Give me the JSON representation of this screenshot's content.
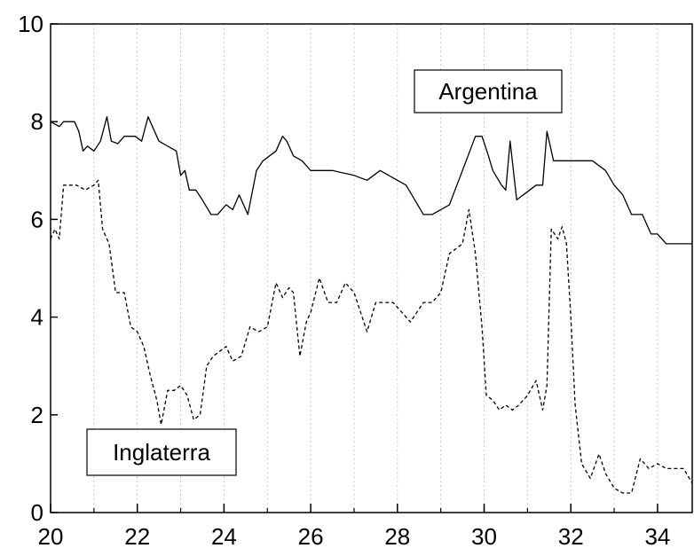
{
  "chart_data": {
    "type": "line",
    "title": "",
    "xlabel": "",
    "ylabel": "",
    "xlim": [
      20,
      34.8
    ],
    "ylim": [
      0,
      10
    ],
    "x_ticks": [
      "20",
      "22",
      "24",
      "26",
      "28",
      "30",
      "32",
      "34"
    ],
    "y_ticks": [
      "0",
      "2",
      "4",
      "6",
      "8",
      "10"
    ],
    "grid": "vertical dotted",
    "series": [
      {
        "name": "Argentina",
        "style": "solid",
        "color": "#000000",
        "x": [
          20,
          20.2,
          20.3,
          20.55,
          20.65,
          20.75,
          20.85,
          21.0,
          21.15,
          21.3,
          21.4,
          21.55,
          21.7,
          21.8,
          21.95,
          22.1,
          22.25,
          22.4,
          22.5,
          22.7,
          22.9,
          23.0,
          23.1,
          23.2,
          23.35,
          23.5,
          23.7,
          23.85,
          24.05,
          24.2,
          24.35,
          24.55,
          24.75,
          24.9,
          25.05,
          25.2,
          25.35,
          25.45,
          25.6,
          25.8,
          26.0,
          26.5,
          27.0,
          27.3,
          27.6,
          28.0,
          28.2,
          28.4,
          28.6,
          28.8,
          29.0,
          29.2,
          29.5,
          29.8,
          29.95,
          30.1,
          30.2,
          30.4,
          30.5,
          30.6,
          30.75,
          30.9,
          31.05,
          31.2,
          31.35,
          31.45,
          31.6,
          32.0,
          32.5,
          32.8,
          33.0,
          33.2,
          33.4,
          33.65,
          33.85,
          34.0,
          34.2,
          34.5,
          34.8
        ],
        "y": [
          8.0,
          7.9,
          8.0,
          8.0,
          7.8,
          7.4,
          7.5,
          7.4,
          7.6,
          8.1,
          7.6,
          7.55,
          7.7,
          7.7,
          7.7,
          7.6,
          8.1,
          7.8,
          7.6,
          7.5,
          7.4,
          6.9,
          7.0,
          6.6,
          6.6,
          6.4,
          6.1,
          6.1,
          6.3,
          6.2,
          6.5,
          6.1,
          7.0,
          7.2,
          7.3,
          7.4,
          7.7,
          7.6,
          7.3,
          7.2,
          7.0,
          7.0,
          6.9,
          6.8,
          7.0,
          6.8,
          6.7,
          6.4,
          6.1,
          6.1,
          6.2,
          6.3,
          7.0,
          7.7,
          7.7,
          7.3,
          7.0,
          6.7,
          6.6,
          7.6,
          6.4,
          6.5,
          6.6,
          6.7,
          6.7,
          7.8,
          7.2,
          7.2,
          7.2,
          7.0,
          6.7,
          6.5,
          6.1,
          6.1,
          5.7,
          5.7,
          5.5,
          5.5,
          5.5
        ],
        "label": "Argentina"
      },
      {
        "name": "Inglaterra",
        "style": "dashed",
        "color": "#000000",
        "x": [
          20,
          20.1,
          20.2,
          20.3,
          20.45,
          20.6,
          20.8,
          21.0,
          21.1,
          21.2,
          21.35,
          21.5,
          21.7,
          21.85,
          22.0,
          22.15,
          22.3,
          22.45,
          22.55,
          22.7,
          22.85,
          23.0,
          23.15,
          23.3,
          23.45,
          23.6,
          23.75,
          23.9,
          24.05,
          24.2,
          24.4,
          24.6,
          24.8,
          25.0,
          25.2,
          25.35,
          25.5,
          25.6,
          25.75,
          25.9,
          26.0,
          26.2,
          26.4,
          26.6,
          26.8,
          27.0,
          27.15,
          27.3,
          27.5,
          27.7,
          27.9,
          28.1,
          28.3,
          28.45,
          28.6,
          28.8,
          29.0,
          29.2,
          29.35,
          29.5,
          29.65,
          29.8,
          29.95,
          30.05,
          30.2,
          30.35,
          30.5,
          30.65,
          30.8,
          31.0,
          31.2,
          31.35,
          31.45,
          31.55,
          31.7,
          31.8,
          31.9,
          32.0,
          32.1,
          32.25,
          32.45,
          32.65,
          32.8,
          33.0,
          33.2,
          33.4,
          33.6,
          33.8,
          34.0,
          34.2,
          34.4,
          34.6,
          34.8
        ],
        "y": [
          5.6,
          5.8,
          5.6,
          6.7,
          6.7,
          6.7,
          6.6,
          6.7,
          6.8,
          5.8,
          5.5,
          4.5,
          4.5,
          3.8,
          3.7,
          3.4,
          2.8,
          2.3,
          1.8,
          2.5,
          2.5,
          2.6,
          2.4,
          1.9,
          2.0,
          3.0,
          3.2,
          3.3,
          3.4,
          3.1,
          3.2,
          3.8,
          3.7,
          3.8,
          4.7,
          4.4,
          4.6,
          4.5,
          3.2,
          3.9,
          4.1,
          4.8,
          4.3,
          4.3,
          4.7,
          4.5,
          4.1,
          3.7,
          4.3,
          4.3,
          4.3,
          4.1,
          3.9,
          4.1,
          4.3,
          4.3,
          4.5,
          5.3,
          5.4,
          5.5,
          6.2,
          5.3,
          3.8,
          2.4,
          2.3,
          2.1,
          2.2,
          2.1,
          2.2,
          2.4,
          2.7,
          2.1,
          2.6,
          5.8,
          5.6,
          5.85,
          5.5,
          4.0,
          2.2,
          1.0,
          0.7,
          1.2,
          0.8,
          0.5,
          0.4,
          0.4,
          1.1,
          0.9,
          1.0,
          0.9,
          0.9,
          0.9,
          0.6
        ],
        "label": "Inglaterra"
      }
    ],
    "annotations": [
      {
        "series": "Argentina",
        "text": "Argentina"
      },
      {
        "series": "Inglaterra",
        "text": "Inglaterra"
      }
    ]
  }
}
